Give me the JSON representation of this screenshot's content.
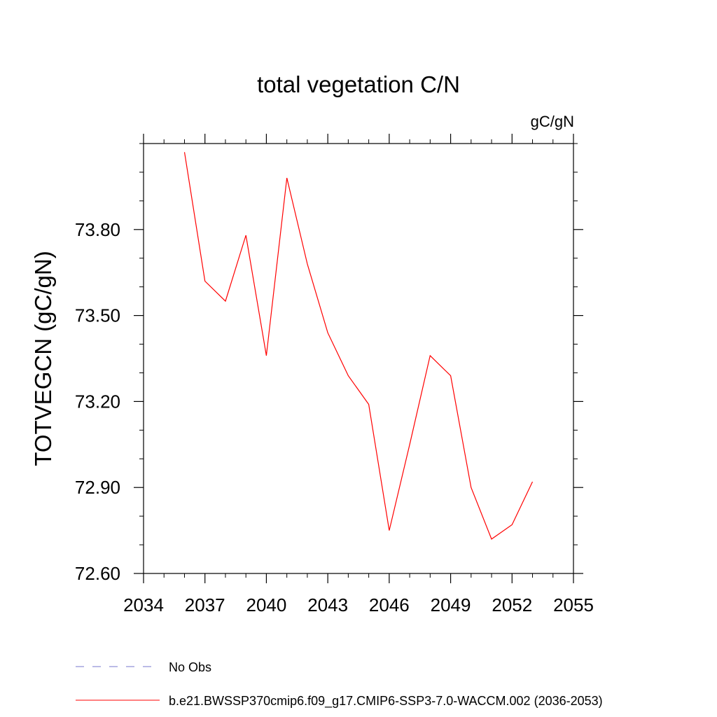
{
  "chart_data": {
    "type": "line",
    "title": "total vegetation C/N",
    "units_label": "gC/gN",
    "ylabel": "TOTVEGCN  (gC/gN)",
    "xlabel": "",
    "xlim": [
      2034,
      2055
    ],
    "ylim": [
      72.6,
      74.1
    ],
    "xticks": [
      2034,
      2037,
      2040,
      2043,
      2046,
      2049,
      2052,
      2055
    ],
    "yticks": [
      72.6,
      72.9,
      73.2,
      73.5,
      73.8
    ],
    "ytick_labels": [
      "72.60",
      "72.90",
      "73.20",
      "73.50",
      "73.80"
    ],
    "grid": false,
    "series": [
      {
        "name": "b.e21.BWSSP370cmip6.f09_g17.CMIP6-SSP3-7.0-WACCM.002 (2036-2053)",
        "color": "#ff0000",
        "dash": "solid",
        "x": [
          2036,
          2037,
          2038,
          2039,
          2040,
          2041,
          2042,
          2043,
          2044,
          2045,
          2046,
          2047,
          2048,
          2049,
          2050,
          2051,
          2052,
          2053
        ],
        "y": [
          74.07,
          73.62,
          73.55,
          73.78,
          73.36,
          73.98,
          73.68,
          73.44,
          73.29,
          73.19,
          72.75,
          73.05,
          73.36,
          73.29,
          72.9,
          72.72,
          72.77,
          72.92
        ]
      }
    ],
    "legend": [
      {
        "label": "No Obs",
        "color": "#7777cc",
        "dash": "dashed"
      },
      {
        "label": "b.e21.BWSSP370cmip6.f09_g17.CMIP6-SSP3-7.0-WACCM.002 (2036-2053)",
        "color": "#ff0000",
        "dash": "solid"
      }
    ],
    "legend_position": "bottom"
  }
}
